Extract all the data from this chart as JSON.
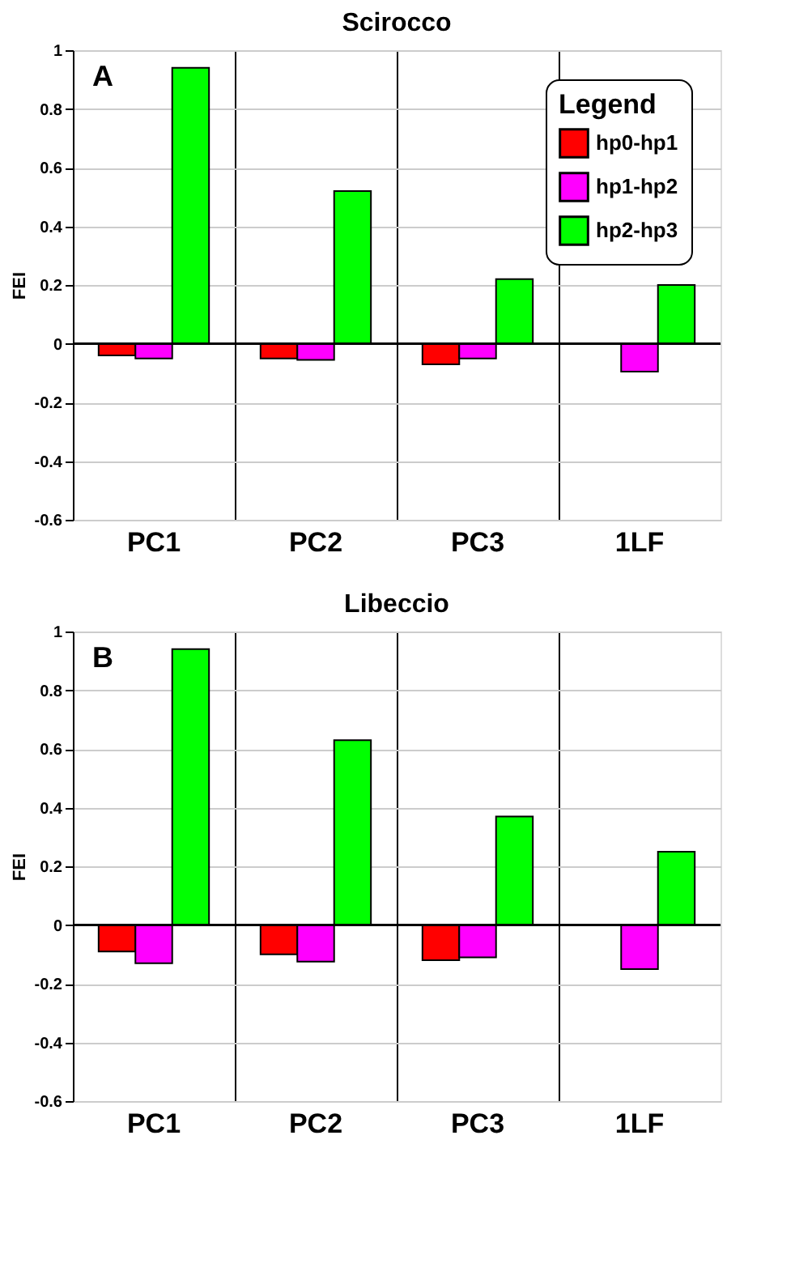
{
  "chart_data": [
    {
      "type": "bar",
      "title": "Scirocco",
      "ylabel": "FEI",
      "annotations": [
        "A"
      ],
      "categories": [
        "PC1",
        "PC2",
        "PC3",
        "1LF"
      ],
      "legend": "top right",
      "legend_title": "Legend",
      "grid": true,
      "ylim": [
        -0.6,
        1
      ],
      "yticks": [
        -0.6,
        -0.4,
        -0.2,
        0,
        0.2,
        0.4,
        0.6,
        0.8,
        1
      ],
      "series": [
        {
          "name": "hp0-hp1",
          "color": "#ff0000",
          "values": [
            -0.04,
            -0.05,
            -0.07,
            null
          ]
        },
        {
          "name": "hp1-hp2",
          "color": "#ff00ff",
          "values": [
            -0.05,
            -0.055,
            -0.05,
            -0.095
          ]
        },
        {
          "name": "hp2-hp3",
          "color": "#00ff00",
          "values": [
            0.94,
            0.52,
            0.22,
            0.2
          ]
        }
      ]
    },
    {
      "type": "bar",
      "title": "Libeccio",
      "ylabel": "FEI",
      "annotations": [
        "B"
      ],
      "categories": [
        "PC1",
        "PC2",
        "PC3",
        "1LF"
      ],
      "grid": true,
      "ylim": [
        -0.6,
        1
      ],
      "yticks": [
        -0.6,
        -0.4,
        -0.2,
        0,
        0.2,
        0.4,
        0.6,
        0.8,
        1
      ],
      "series": [
        {
          "color": "#ff0000",
          "values": [
            -0.09,
            -0.1,
            -0.12,
            null
          ]
        },
        {
          "color": "#ff00ff",
          "values": [
            -0.13,
            -0.125,
            -0.11,
            -0.15
          ]
        },
        {
          "color": "#00ff00",
          "values": [
            0.94,
            0.63,
            0.37,
            0.25
          ]
        }
      ]
    }
  ]
}
